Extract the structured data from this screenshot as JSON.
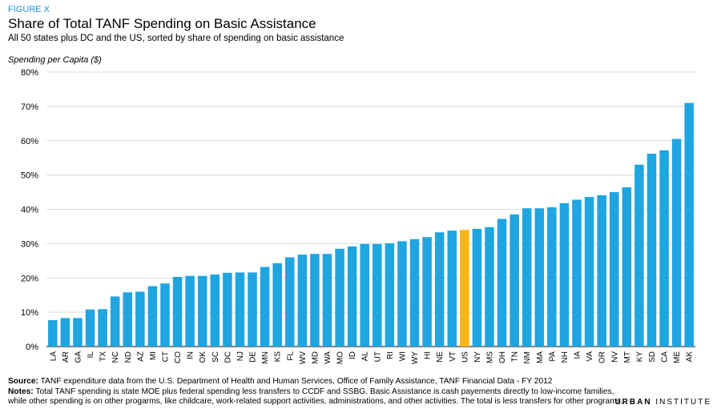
{
  "figure_label": "FIGURE X",
  "colors": {
    "bar": "#1fa5e0",
    "highlight": "#fdb515",
    "grid": "#dcdcdc"
  },
  "notes": {
    "source_label": "Source:",
    "source_text": " TANF expenditure data from the U.S. Department of Health and Human Services, Office of Family Assistance, TANF Financial Data - FY 2012",
    "notes_label": "Notes:",
    "notes_text": " Total TANF spending is state MOE plus federal spending less transfers to CCDF and SSBG. Basic Assistance is cash payements directly to low-income families, while other spending is on other progarms, like childcare, work-related support activities, administrations, and other activities. The total is less transfers for other programs."
  },
  "brand": {
    "bold": "URBAN",
    "rest": " INSTITUTE"
  },
  "chart_data": {
    "type": "bar",
    "title": "Share of Total TANF Spending on Basic Assistance",
    "subtitle": "All 50 states plus DC and the US, sorted by share of spending on basic assistance",
    "ylabel": "Spending per Capita ($)",
    "xlabel": "",
    "ylim": [
      0,
      80
    ],
    "yticks": [
      0,
      10,
      20,
      30,
      40,
      50,
      60,
      70,
      80
    ],
    "ytick_labels": [
      "0%",
      "10%",
      "20%",
      "30%",
      "40%",
      "50%",
      "60%",
      "70%",
      "80%"
    ],
    "grid": true,
    "highlight_category": "US",
    "categories": [
      "LA",
      "AR",
      "GA",
      "IL",
      "TX",
      "NC",
      "ND",
      "AZ",
      "MI",
      "CT",
      "CO",
      "IN",
      "OK",
      "SC",
      "DC",
      "NJ",
      "DE",
      "MN",
      "KS",
      "FL",
      "WV",
      "MD",
      "WA",
      "MO",
      "ID",
      "AL",
      "UT",
      "RI",
      "WI",
      "WY",
      "HI",
      "NE",
      "VT",
      "US",
      "NY",
      "MS",
      "OH",
      "TN",
      "NM",
      "MA",
      "PA",
      "NH",
      "IA",
      "VA",
      "OR",
      "NV",
      "MT",
      "KY",
      "SD",
      "CA",
      "ME",
      "AK"
    ],
    "values": [
      7.7,
      8.3,
      8.3,
      10.8,
      10.9,
      14.6,
      15.8,
      16.0,
      17.6,
      18.4,
      20.3,
      20.6,
      20.6,
      21.0,
      21.5,
      21.6,
      21.6,
      23.2,
      24.3,
      26.0,
      26.8,
      27.0,
      27.0,
      28.5,
      29.2,
      29.9,
      29.9,
      30.1,
      30.7,
      31.3,
      31.9,
      33.3,
      33.8,
      34.0,
      34.3,
      34.8,
      37.2,
      38.5,
      40.3,
      40.3,
      40.6,
      41.8,
      42.8,
      43.6,
      44.1,
      45.0,
      46.4,
      53.0,
      56.2,
      57.2,
      60.5,
      71.0
    ]
  }
}
